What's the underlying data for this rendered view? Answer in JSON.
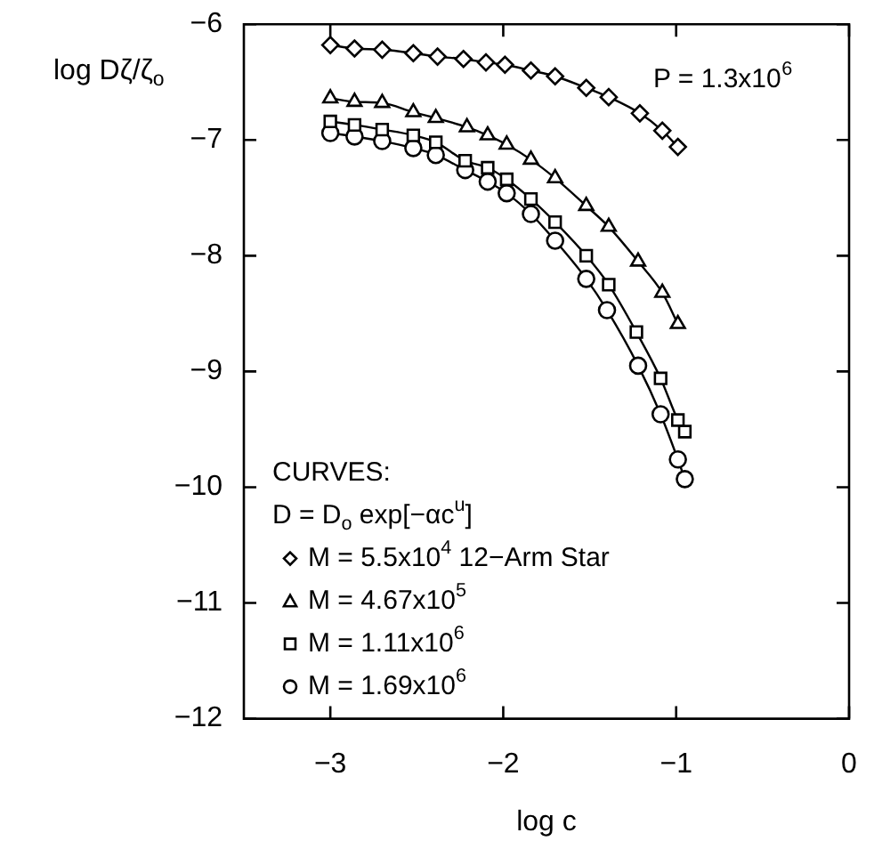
{
  "chart_data": {
    "type": "line",
    "xlabel": "log c",
    "ylabel": "log Dζ/ζ$_{o}$",
    "xlim": [
      -3.5,
      0
    ],
    "ylim": [
      -12,
      -6
    ],
    "xticks": [
      -3,
      -2,
      -1,
      0
    ],
    "yticks": [
      -12,
      -11,
      -10,
      -9,
      -8,
      -7,
      -6
    ],
    "grid": false,
    "legend": "bottom left",
    "legend_title": "CURVES:",
    "annotations": [
      "P = 1.3x10$^{6}$",
      "D = D$_{o}$ exp[−αc$^{u}$]"
    ],
    "series": [
      {
        "name": "M = 5.5x10$^{4}$ 12−Arm Star",
        "color": "#000000",
        "marker": "diamond",
        "x": [
          -3.0,
          -2.86,
          -2.7,
          -2.52,
          -2.38,
          -2.23,
          -2.1,
          -1.99,
          -1.84,
          -1.7,
          -1.52,
          -1.39,
          -1.21,
          -1.08,
          -0.99
        ],
        "values": [
          -6.18,
          -6.21,
          -6.22,
          -6.25,
          -6.28,
          -6.3,
          -6.33,
          -6.35,
          -6.4,
          -6.45,
          -6.55,
          -6.63,
          -6.77,
          -6.92,
          -7.06
        ]
      },
      {
        "name": "M = 4.67x10$^{5}$",
        "color": "#000000",
        "marker": "triangle",
        "x": [
          -3.0,
          -2.86,
          -2.7,
          -2.52,
          -2.39,
          -2.21,
          -2.09,
          -1.98,
          -1.84,
          -1.7,
          -1.52,
          -1.39,
          -1.22,
          -1.08,
          -0.99
        ],
        "values": [
          -6.64,
          -6.67,
          -6.68,
          -6.76,
          -6.81,
          -6.89,
          -6.96,
          -7.04,
          -7.17,
          -7.33,
          -7.57,
          -7.75,
          -8.05,
          -8.32,
          -8.59
        ]
      },
      {
        "name": "M = 1.11x10$^{6}$",
        "color": "#000000",
        "marker": "square",
        "x": [
          -3.0,
          -2.86,
          -2.7,
          -2.52,
          -2.39,
          -2.22,
          -2.09,
          -1.98,
          -1.84,
          -1.7,
          -1.52,
          -1.39,
          -1.23,
          -1.09,
          -0.99,
          -0.95
        ],
        "values": [
          -6.84,
          -6.87,
          -6.91,
          -6.96,
          -7.02,
          -7.18,
          -7.24,
          -7.34,
          -7.51,
          -7.71,
          -8.0,
          -8.25,
          -8.66,
          -9.06,
          -9.42,
          -9.52
        ]
      },
      {
        "name": "M = 1.69x10$^{6}$",
        "color": "#000000",
        "marker": "circle",
        "x": [
          -3.0,
          -2.86,
          -2.7,
          -2.52,
          -2.39,
          -2.22,
          -2.09,
          -1.98,
          -1.84,
          -1.7,
          -1.52,
          -1.4,
          -1.22,
          -1.09,
          -0.99,
          -0.95
        ],
        "values": [
          -6.94,
          -6.97,
          -7.01,
          -7.07,
          -7.13,
          -7.26,
          -7.36,
          -7.46,
          -7.64,
          -7.87,
          -8.2,
          -8.47,
          -8.95,
          -9.37,
          -9.76,
          -9.93
        ]
      }
    ]
  }
}
